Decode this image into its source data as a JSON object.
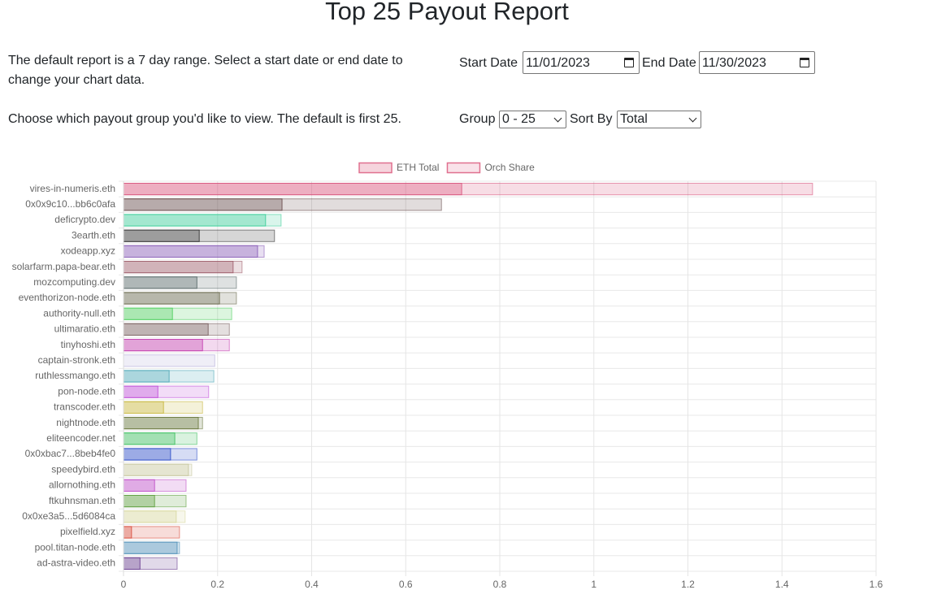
{
  "header": {
    "title": "Top 25 Payout Report"
  },
  "controls": {
    "date_text": "The default report is a 7 day range. Select a start date or end date to change your chart data.",
    "start_label": "Start Date",
    "start_value": "11/01/2023",
    "end_label": "End Date",
    "end_value": "11/30/2023",
    "group_text": "Choose which payout group you'd like to view. The default is first 25.",
    "group_label": "Group",
    "group_value": "0 - 25",
    "sort_label": "Sort By",
    "sort_value": "Total"
  },
  "chart_data": {
    "type": "bar",
    "orientation": "horizontal",
    "legend": "top",
    "grid": true,
    "categories": [
      "vires-in-numeris.eth",
      "0x0x9c10...bb6c0afa",
      "deficrypto.dev",
      "3earth.eth",
      "xodeapp.xyz",
      "solarfarm.papa-bear.eth",
      "mozcomputing.dev",
      "eventhorizon-node.eth",
      "authority-null.eth",
      "ultimaratio.eth",
      "tinyhoshi.eth",
      "captain-stronk.eth",
      "ruthlessmango.eth",
      "pon-node.eth",
      "transcoder.eth",
      "nightnode.eth",
      "eliteencoder.net",
      "0x0xbac7...8beb4fe0",
      "speedybird.eth",
      "allornothing.eth",
      "ftkuhnsman.eth",
      "0x0xe3a5...5d6084ca",
      "pixelfield.xyz",
      "pool.titan-node.eth",
      "ad-astra-video.eth"
    ],
    "series": [
      {
        "name": "ETH Total",
        "color": "#e0708f",
        "values": [
          1.465,
          0.676,
          0.335,
          0.321,
          0.299,
          0.252,
          0.24,
          0.24,
          0.23,
          0.225,
          0.225,
          0.194,
          0.192,
          0.181,
          0.168,
          0.168,
          0.156,
          0.156,
          0.145,
          0.133,
          0.133,
          0.131,
          0.119,
          0.119,
          0.114
        ]
      },
      {
        "name": "Orch Share",
        "color": "#e0708f",
        "values": [
          0.719,
          0.337,
          0.302,
          0.161,
          0.285,
          0.233,
          0.156,
          0.204,
          0.104,
          0.18,
          0.168,
          0,
          0.097,
          0.073,
          0.085,
          0.159,
          0.109,
          0.1,
          0.138,
          0.066,
          0.066,
          0.112,
          0.017,
          0.114,
          0.035
        ]
      }
    ],
    "bar_colors": [
      "#d9577f",
      "#6b4f4f",
      "#3fcf9a",
      "#333333",
      "#8a5fb8",
      "#a0606e",
      "#5a6a6a",
      "#6b6b4f",
      "#4fcf5f",
      "#7a6060",
      "#c43fb0",
      "#b0a8d8",
      "#4fa8b8",
      "#c04fd8",
      "#c8b840",
      "#6b7a3f",
      "#3fc060",
      "#3050c8",
      "#c8c8a0",
      "#c050c8",
      "#5fa040",
      "#d8d8a0",
      "#d85040",
      "#4f90b8",
      "#6a3f90"
    ],
    "xlim": [
      0,
      1.6
    ],
    "xticks": [
      0,
      0.2,
      0.4,
      0.6,
      0.8,
      1,
      1.2,
      1.4,
      1.6
    ]
  }
}
